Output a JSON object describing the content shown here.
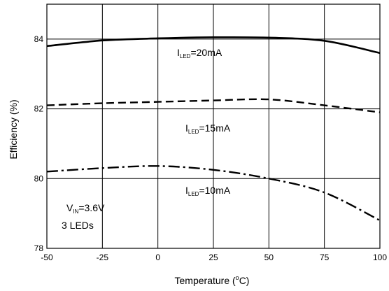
{
  "chart_data": {
    "type": "line",
    "xlabel": "Temperature (°C)",
    "ylabel": "Efficiency (%)",
    "xlim": [
      -50,
      100
    ],
    "ylim": [
      78,
      85
    ],
    "grid": true,
    "x_ticks": [
      "-50",
      "-25",
      "0",
      "25",
      "50",
      "75",
      "100"
    ],
    "y_ticks": [
      "78",
      "80",
      "82",
      "84"
    ],
    "series": [
      {
        "name": "ILED=20mA",
        "line_style": "solid",
        "x": [
          -50,
          -25,
          0,
          25,
          50,
          75,
          100
        ],
        "y": [
          83.8,
          83.96,
          84.02,
          84.05,
          84.04,
          83.95,
          83.6
        ]
      },
      {
        "name": "ILED=15mA",
        "line_style": "dashed",
        "x": [
          -50,
          -25,
          0,
          25,
          50,
          75,
          100
        ],
        "y": [
          82.1,
          82.16,
          82.2,
          82.24,
          82.27,
          82.1,
          81.9
        ]
      },
      {
        "name": "ILED=10mA",
        "line_style": "dash-dot",
        "x": [
          -50,
          -25,
          0,
          25,
          50,
          75,
          100
        ],
        "y": [
          80.2,
          80.3,
          80.36,
          80.25,
          80.0,
          79.6,
          78.8
        ]
      }
    ]
  },
  "labels": {
    "s20": {
      "main": "I",
      "sub": "LED",
      "tail": "=20mA"
    },
    "s15": {
      "main": "I",
      "sub": "LED",
      "tail": "=15mA"
    },
    "s10": {
      "main": "I",
      "sub": "LED",
      "tail": "=10mA"
    },
    "vin": {
      "main": "V",
      "sub": "IN",
      "tail": "=3.6V"
    },
    "leds": "3 LEDs",
    "xtitle": {
      "pre": "Temperature (",
      "sup": "o",
      "post": "C)"
    }
  }
}
